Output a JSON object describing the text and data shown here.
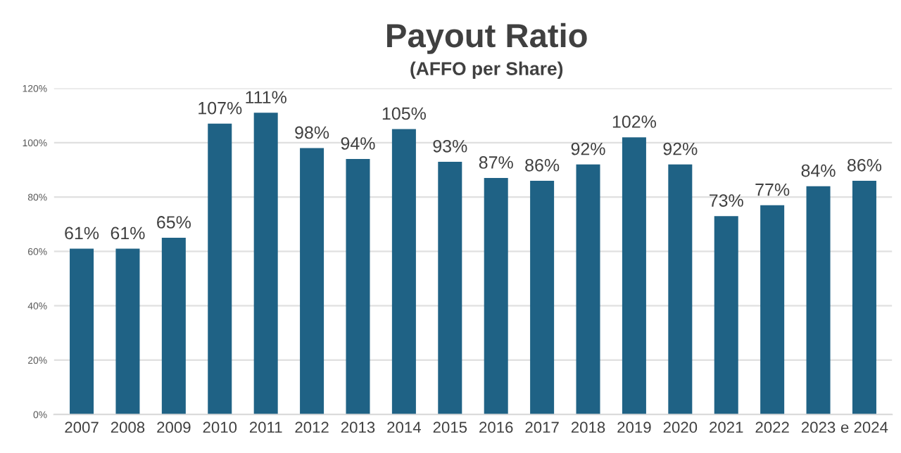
{
  "chart_data": {
    "type": "bar",
    "title": "Payout Ratio",
    "subtitle": "(AFFO per Share)",
    "categories": [
      "2007",
      "2008",
      "2009",
      "2010",
      "2011",
      "2012",
      "2013",
      "2014",
      "2015",
      "2016",
      "2017",
      "2018",
      "2019",
      "2020",
      "2021",
      "2022",
      "2023",
      "e 2024"
    ],
    "values": [
      61,
      61,
      65,
      107,
      111,
      98,
      94,
      105,
      93,
      87,
      86,
      92,
      102,
      92,
      73,
      77,
      84,
      86
    ],
    "value_labels": [
      "61%",
      "61%",
      "65%",
      "107%",
      "111%",
      "98%",
      "94%",
      "105%",
      "93%",
      "87%",
      "86%",
      "92%",
      "102%",
      "92%",
      "73%",
      "77%",
      "84%",
      "86%"
    ],
    "color": "#1f6285",
    "ylim": [
      0,
      120
    ],
    "yticks": [
      {
        "value": 0,
        "label": "0%"
      },
      {
        "value": 20,
        "label": "20%"
      },
      {
        "value": 40,
        "label": "40%"
      },
      {
        "value": 60,
        "label": "60%"
      },
      {
        "value": 80,
        "label": "80%"
      },
      {
        "value": 100,
        "label": "100%"
      },
      {
        "value": 120,
        "label": "120%"
      }
    ],
    "grid": "y",
    "legend": false
  }
}
